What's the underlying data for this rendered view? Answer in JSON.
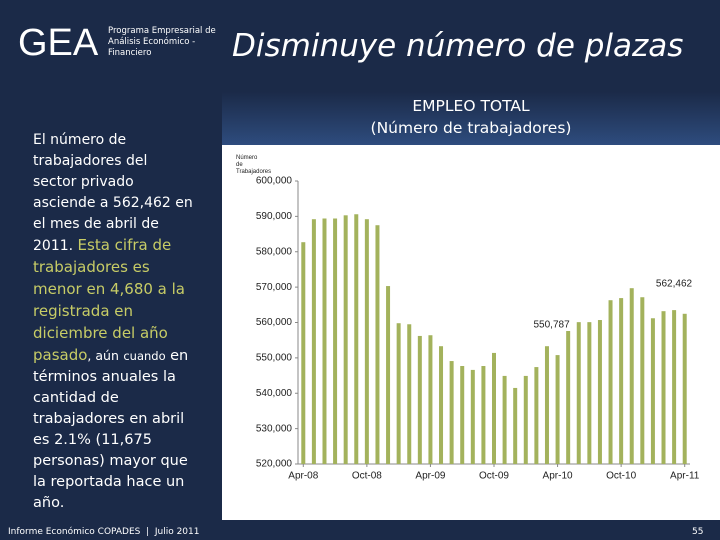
{
  "header": {
    "logo": "GEA",
    "program": "Programa Empresarial de Análisis Económico - Financiero",
    "title": "Disminuye número de plazas"
  },
  "summary": [
    "El número de trabajadores del sector privado asciende a 562,462 en el mes de abril de 2011.",
    "Esta cifra de trabajadores es menor en 4,680 a la registrada en diciembre del año pasado",
    ", aún",
    "cuando",
    "en términos anuales la cantidad de trabajadores en abril es 2.1% (11,675 personas) mayor que la reportada hace un año."
  ],
  "footer": {
    "left": "Informe Económico COPADES  |  Julio 2011",
    "page": "55"
  },
  "chart_data": {
    "type": "bar",
    "title": "EMPLEO TOTAL",
    "subtitle": "(Número de trabajadores)",
    "y_label": "Número de Trabajadores",
    "categories": [
      "Apr-08",
      null,
      null,
      null,
      null,
      null,
      "Oct-08",
      null,
      null,
      null,
      null,
      null,
      "Apr-09",
      null,
      null,
      null,
      null,
      null,
      "Oct-09",
      null,
      null,
      null,
      null,
      null,
      "Apr-10",
      null,
      null,
      null,
      null,
      null,
      "Oct-10",
      null,
      null,
      null,
      null,
      null,
      "Apr-11"
    ],
    "values": [
      582700,
      589200,
      589400,
      589400,
      590300,
      590600,
      589200,
      587500,
      570300,
      559800,
      559500,
      556200,
      556400,
      553300,
      549100,
      547700,
      546600,
      547700,
      551400,
      544900,
      541500,
      544900,
      547400,
      553300,
      550787,
      557600,
      560100,
      560100,
      560700,
      566300,
      566900,
      569700,
      567142,
      561200,
      563200,
      563500,
      562462
    ],
    "value_labels": [
      null,
      null,
      null,
      null,
      null,
      null,
      null,
      null,
      null,
      null,
      null,
      null,
      null,
      null,
      null,
      null,
      null,
      null,
      null,
      null,
      null,
      null,
      null,
      null,
      "550,787",
      null,
      null,
      null,
      null,
      null,
      null,
      null,
      null,
      null,
      null,
      null,
      "562,462"
    ],
    "color": "#a3b25c",
    "ylim": [
      520000,
      600000
    ],
    "yticks": [
      {
        "value": 520000,
        "label": "520,000"
      },
      {
        "value": 530000,
        "label": "530,000"
      },
      {
        "value": 540000,
        "label": "540,000"
      },
      {
        "value": 550000,
        "label": "550,000"
      },
      {
        "value": 560000,
        "label": "560,000"
      },
      {
        "value": 570000,
        "label": "570,000"
      },
      {
        "value": 580000,
        "label": "580,000"
      },
      {
        "value": 590000,
        "label": "590,000"
      },
      {
        "value": 600000,
        "label": "600,000"
      }
    ],
    "grid": false
  }
}
